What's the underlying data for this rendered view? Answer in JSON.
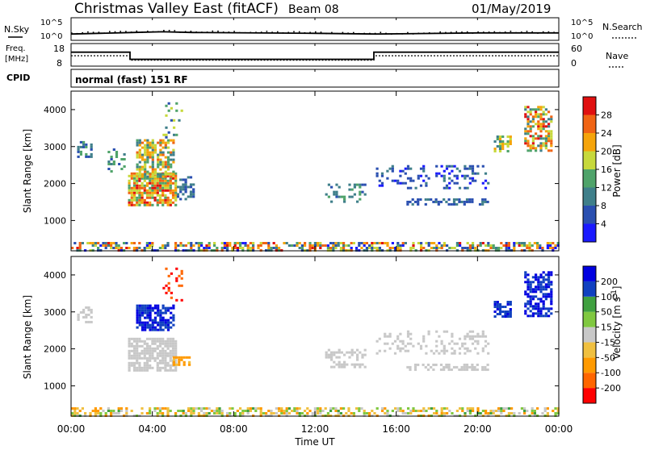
{
  "header": {
    "radar": "Christmas Valley East (fitACF)",
    "beam": "Beam 08",
    "date": "01/May/2019"
  },
  "strips": {
    "nsky_label": "N.Sky",
    "nsky_ticks": [
      "10^5",
      "10^0"
    ],
    "nsearch_label": "N.Search",
    "nsearch_ticks": [
      "10^5",
      "10^0"
    ],
    "freq_label": "Freq.",
    "freq_unit": "[MHz]",
    "freq_ticks": [
      "18",
      "8"
    ],
    "nave_label": "Nave",
    "nave_ticks": [
      "60",
      "0"
    ],
    "cpid_label": "CPID",
    "cpid_text": "normal (fast) 151 RF"
  },
  "colors": {
    "power": [
      "#1a1aff",
      "#2a4fb0",
      "#3f7f8a",
      "#4fa36a",
      "#c7d93c",
      "#f5a40a",
      "#f06414",
      "#e01010"
    ],
    "velocity": [
      "#ff0000",
      "#ff6600",
      "#ff9a00",
      "#f0c040",
      "#c8c8c8",
      "#80c840",
      "#40a040",
      "#1040c0",
      "#0000e0"
    ]
  },
  "chart_data": [
    {
      "type": "line",
      "title": "N.Sky / N.Search",
      "x_range_hours": [
        0,
        24
      ],
      "series": [
        {
          "name": "N.Sky",
          "x_hours": [
            0,
            3,
            4.5,
            6,
            12,
            15,
            20,
            24
          ],
          "values_log10": [
            1.2,
            1.6,
            1.8,
            1.6,
            1.4,
            1.2,
            1.5,
            1.5
          ]
        }
      ]
    },
    {
      "type": "line",
      "title": "Freq. / Nave",
      "ylim": [
        8,
        18
      ],
      "x_range_hours": [
        0,
        24
      ],
      "series": [
        {
          "name": "Freq.",
          "x_hours": [
            0,
            2.9,
            2.9,
            14.9,
            14.9,
            24
          ],
          "values": [
            14.5,
            14.5,
            10.5,
            10.5,
            14.5,
            14.5
          ]
        },
        {
          "name": "Nave",
          "x_hours": [
            0,
            2.9,
            2.9,
            14.9,
            14.9,
            24
          ],
          "values": [
            12.5,
            12.5,
            10.0,
            10.0,
            12.5,
            12.5
          ]
        }
      ]
    },
    {
      "type": "heatmap",
      "parameter": "Power",
      "xlabel": "",
      "ylabel": "Slant Range [km]",
      "colorbar_label": "Power [dB]",
      "colorbar_ticks": [
        "28",
        "24",
        "20",
        "16",
        "12",
        "8",
        "4"
      ],
      "ylim": [
        180,
        4500
      ],
      "yticks": [
        1000,
        2000,
        3000,
        4000
      ],
      "x_range_hours": [
        0,
        24
      ],
      "regions": [
        {
          "t0": 0.0,
          "t1": 24.0,
          "r0": 180,
          "r1": 420,
          "density": 0.55,
          "vmin": 2,
          "vmax": 30
        },
        {
          "t0": 0.3,
          "t1": 1.0,
          "r0": 2700,
          "r1": 3150,
          "density": 0.45,
          "vmin": 4,
          "vmax": 14
        },
        {
          "t0": 1.8,
          "t1": 2.6,
          "r0": 2350,
          "r1": 2950,
          "density": 0.35,
          "vmin": 6,
          "vmax": 16
        },
        {
          "t0": 2.8,
          "t1": 5.1,
          "r0": 1400,
          "r1": 2300,
          "density": 0.8,
          "vmin": 12,
          "vmax": 30
        },
        {
          "t0": 3.2,
          "t1": 5.0,
          "r0": 2200,
          "r1": 3200,
          "density": 0.65,
          "vmin": 8,
          "vmax": 26
        },
        {
          "t0": 4.5,
          "t1": 5.4,
          "r0": 3200,
          "r1": 4200,
          "density": 0.2,
          "vmin": 6,
          "vmax": 18
        },
        {
          "t0": 5.2,
          "t1": 6.0,
          "r0": 1600,
          "r1": 2200,
          "density": 0.5,
          "vmin": 4,
          "vmax": 12
        },
        {
          "t0": 12.5,
          "t1": 14.5,
          "r0": 1500,
          "r1": 2000,
          "density": 0.3,
          "vmin": 6,
          "vmax": 14
        },
        {
          "t0": 15.0,
          "t1": 20.5,
          "r0": 1900,
          "r1": 2500,
          "density": 0.25,
          "vmin": 2,
          "vmax": 10
        },
        {
          "t0": 16.5,
          "t1": 20.5,
          "r0": 1450,
          "r1": 1600,
          "density": 0.5,
          "vmin": 4,
          "vmax": 10
        },
        {
          "t0": 20.8,
          "t1": 21.6,
          "r0": 2900,
          "r1": 3300,
          "density": 0.6,
          "vmin": 8,
          "vmax": 24
        },
        {
          "t0": 22.3,
          "t1": 23.6,
          "r0": 2900,
          "r1": 4100,
          "density": 0.55,
          "vmin": 8,
          "vmax": 30
        }
      ]
    },
    {
      "type": "heatmap",
      "parameter": "Velocity",
      "xlabel": "Time UT",
      "ylabel": "Slant Range [km]",
      "colorbar_label": "Velocity [m s^-1]",
      "colorbar_ticks": [
        "200",
        "100",
        "50",
        "15",
        "-15",
        "-50",
        "-100",
        "-200"
      ],
      "ylim": [
        180,
        4500
      ],
      "yticks": [
        1000,
        2000,
        3000,
        4000
      ],
      "x_range_hours": [
        0,
        24
      ],
      "xticks": [
        "00:00",
        "04:00",
        "08:00",
        "12:00",
        "16:00",
        "20:00",
        "00:00"
      ],
      "regions": [
        {
          "t0": 0.0,
          "t1": 24.0,
          "r0": 180,
          "r1": 420,
          "density": 0.5,
          "vmin": -80,
          "vmax": 60
        },
        {
          "t0": 0.3,
          "t1": 1.0,
          "r0": 2700,
          "r1": 3150,
          "density": 0.45,
          "vmin": -10,
          "vmax": 10
        },
        {
          "t0": 2.8,
          "t1": 5.1,
          "r0": 1400,
          "r1": 2300,
          "density": 0.75,
          "vmin": -14,
          "vmax": 14
        },
        {
          "t0": 3.2,
          "t1": 5.0,
          "r0": 2500,
          "r1": 3200,
          "density": 0.7,
          "vmin": 150,
          "vmax": 250
        },
        {
          "t0": 4.5,
          "t1": 5.4,
          "r0": 3300,
          "r1": 4200,
          "density": 0.25,
          "vmin": -250,
          "vmax": -150
        },
        {
          "t0": 5.0,
          "t1": 5.8,
          "r0": 1600,
          "r1": 1800,
          "density": 0.6,
          "vmin": -90,
          "vmax": -40
        },
        {
          "t0": 12.5,
          "t1": 14.5,
          "r0": 1500,
          "r1": 2000,
          "density": 0.3,
          "vmin": -12,
          "vmax": 12
        },
        {
          "t0": 15.0,
          "t1": 20.5,
          "r0": 1900,
          "r1": 2500,
          "density": 0.25,
          "vmin": -12,
          "vmax": 12
        },
        {
          "t0": 16.5,
          "t1": 20.5,
          "r0": 1450,
          "r1": 1600,
          "density": 0.5,
          "vmin": -12,
          "vmax": 12
        },
        {
          "t0": 20.8,
          "t1": 21.6,
          "r0": 2900,
          "r1": 3300,
          "density": 0.65,
          "vmin": 150,
          "vmax": 260
        },
        {
          "t0": 22.3,
          "t1": 23.6,
          "r0": 2900,
          "r1": 4100,
          "density": 0.6,
          "vmin": 150,
          "vmax": 260
        }
      ]
    }
  ]
}
